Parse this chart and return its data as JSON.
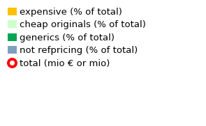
{
  "legend_items": [
    {
      "label": "expensive (% of total)",
      "type": "patch",
      "color": "#FFC000"
    },
    {
      "label": "cheap originals (% of total)",
      "type": "patch",
      "color": "#CCFFCC"
    },
    {
      "label": "generics (% of total)",
      "type": "patch",
      "color": "#00A651"
    },
    {
      "label": "not refpricing (% of total)",
      "type": "patch",
      "color": "#7F9FC0"
    },
    {
      "label": "total (mio € or mio)",
      "type": "line_marker",
      "line_color": "#FF0000",
      "marker": "o",
      "marker_face": "white",
      "marker_edge": "#FF0000"
    }
  ],
  "background_color": "#FFFFFF",
  "text_color": "#000000",
  "font_size": 9.5,
  "marker_size": 8,
  "marker_edge_width": 2.8
}
